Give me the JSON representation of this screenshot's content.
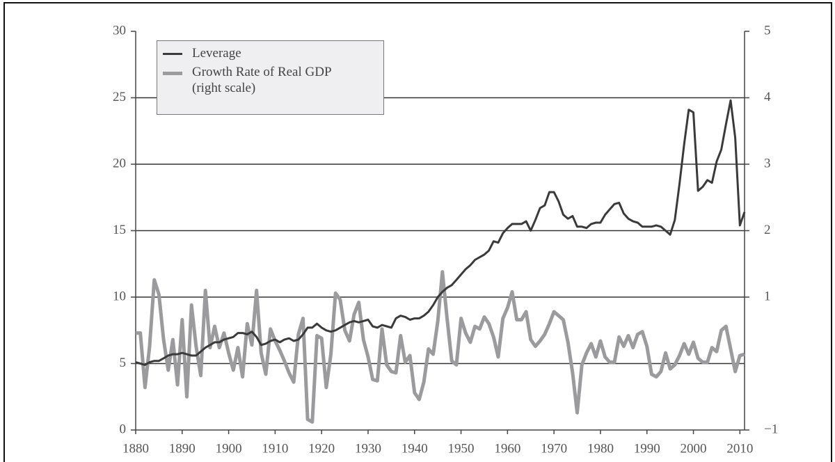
{
  "chart_data": {
    "type": "line",
    "x": [
      1880,
      1881,
      1882,
      1883,
      1884,
      1885,
      1886,
      1887,
      1888,
      1889,
      1890,
      1891,
      1892,
      1893,
      1894,
      1895,
      1896,
      1897,
      1898,
      1899,
      1900,
      1901,
      1902,
      1903,
      1904,
      1905,
      1906,
      1907,
      1908,
      1909,
      1910,
      1911,
      1912,
      1913,
      1914,
      1915,
      1916,
      1917,
      1918,
      1919,
      1920,
      1921,
      1922,
      1923,
      1924,
      1925,
      1926,
      1927,
      1928,
      1929,
      1930,
      1931,
      1932,
      1933,
      1934,
      1935,
      1936,
      1937,
      1938,
      1939,
      1940,
      1941,
      1942,
      1943,
      1944,
      1945,
      1946,
      1947,
      1948,
      1949,
      1950,
      1951,
      1952,
      1953,
      1954,
      1955,
      1956,
      1957,
      1958,
      1959,
      1960,
      1961,
      1962,
      1963,
      1964,
      1965,
      1966,
      1967,
      1968,
      1969,
      1970,
      1971,
      1972,
      1973,
      1974,
      1975,
      1976,
      1977,
      1978,
      1979,
      1980,
      1981,
      1982,
      1983,
      1984,
      1985,
      1986,
      1987,
      1988,
      1989,
      1990,
      1991,
      1992,
      1993,
      1994,
      1995,
      1996,
      1997,
      1998,
      1999,
      2000,
      2001,
      2002,
      2003,
      2004,
      2005,
      2006,
      2007,
      2008,
      2009,
      2010,
      2011
    ],
    "series": [
      {
        "name": "Leverage",
        "color": "#3a3a3a",
        "axis": "y",
        "values": [
          5.1,
          5.0,
          4.9,
          5.1,
          5.2,
          5.2,
          5.4,
          5.6,
          5.7,
          5.7,
          5.8,
          5.7,
          5.6,
          5.6,
          5.9,
          6.2,
          6.4,
          6.6,
          6.6,
          6.8,
          6.9,
          7.0,
          7.3,
          7.3,
          7.2,
          7.4,
          7.0,
          6.4,
          6.5,
          6.7,
          6.8,
          6.6,
          6.8,
          6.9,
          6.7,
          6.8,
          7.2,
          7.7,
          7.7,
          8.0,
          7.7,
          7.5,
          7.4,
          7.5,
          7.7,
          7.9,
          8.1,
          8.2,
          8.1,
          8.2,
          8.3,
          7.8,
          7.7,
          7.9,
          7.8,
          7.7,
          8.4,
          8.6,
          8.5,
          8.3,
          8.4,
          8.4,
          8.6,
          8.9,
          9.4,
          10.0,
          10.4,
          10.7,
          10.9,
          11.3,
          11.7,
          12.1,
          12.4,
          12.8,
          13.0,
          13.2,
          13.5,
          14.2,
          14.1,
          14.8,
          15.2,
          15.5,
          15.5,
          15.5,
          15.7,
          15.0,
          15.8,
          16.7,
          16.9,
          17.9,
          17.9,
          17.2,
          16.2,
          15.9,
          16.1,
          15.3,
          15.3,
          15.2,
          15.5,
          15.6,
          15.6,
          16.2,
          16.6,
          17.0,
          17.1,
          16.3,
          15.9,
          15.7,
          15.6,
          15.3,
          15.3,
          15.3,
          15.4,
          15.3,
          15.0,
          14.7,
          15.8,
          18.5,
          21.5,
          24.1,
          23.9,
          18.0,
          18.3,
          18.8,
          18.6,
          20.2,
          21.1,
          23.0,
          24.8,
          22.0,
          15.4,
          16.4
        ]
      },
      {
        "name": "Growth Rate of Real GDP (right scale)",
        "color": "#9b9b9d",
        "axis": "y2",
        "values": [
          0.46,
          0.46,
          -0.36,
          0.26,
          1.26,
          1.04,
          0.36,
          -0.1,
          0.36,
          -0.32,
          0.66,
          -0.5,
          0.88,
          0.26,
          -0.18,
          1.1,
          0.24,
          0.56,
          0.24,
          0.46,
          0.16,
          -0.1,
          0.24,
          -0.2,
          0.6,
          0.28,
          1.1,
          0.16,
          -0.16,
          0.52,
          0.34,
          0.2,
          0.04,
          -0.14,
          -0.28,
          0.44,
          0.68,
          -0.84,
          -0.88,
          0.42,
          0.38,
          -0.36,
          0.14,
          1.06,
          0.96,
          0.5,
          0.34,
          0.74,
          0.92,
          0.36,
          0.1,
          -0.24,
          -0.26,
          0.52,
          -0.02,
          -0.12,
          -0.14,
          0.42,
          0.02,
          0.12,
          -0.44,
          -0.54,
          -0.28,
          0.22,
          0.14,
          0.64,
          1.38,
          0.68,
          0.04,
          -0.02,
          0.68,
          0.46,
          0.32,
          0.56,
          0.52,
          0.7,
          0.6,
          0.4,
          0.1,
          0.68,
          0.84,
          1.08,
          0.66,
          0.66,
          0.78,
          0.36,
          0.26,
          0.34,
          0.44,
          0.6,
          0.78,
          0.72,
          0.66,
          0.32,
          -0.14,
          -0.74,
          -0.02,
          0.16,
          0.3,
          0.1,
          0.34,
          0.1,
          0.02,
          0.02,
          0.4,
          0.26,
          0.42,
          0.24,
          0.44,
          0.48,
          0.26,
          -0.16,
          -0.2,
          -0.12,
          0.16,
          -0.08,
          -0.02,
          0.12,
          0.3,
          0.14,
          0.32,
          0.08,
          0.02,
          0.02,
          0.24,
          0.18,
          0.5,
          0.56,
          0.22,
          -0.12,
          0.12,
          0.14
        ]
      }
    ],
    "xlim": [
      1880,
      2011
    ],
    "xticks": [
      1880,
      1890,
      1900,
      1910,
      1920,
      1930,
      1940,
      1950,
      1960,
      1970,
      1980,
      1990,
      2000,
      2010
    ],
    "ylim": [
      0,
      30
    ],
    "yticks": [
      0,
      5,
      10,
      15,
      20,
      25,
      30
    ],
    "y2lim": [
      -1,
      5
    ],
    "y2ticks": [
      {
        "value": -1,
        "label": "−1"
      },
      1,
      2,
      3,
      4,
      5
    ],
    "grid": true,
    "legend": "upper left"
  }
}
